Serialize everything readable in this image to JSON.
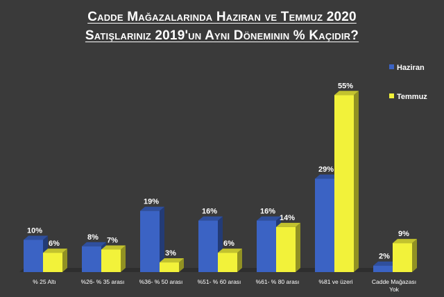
{
  "title_line1": "Cadde Mağazalarında Haziran ve Temmuz 2020",
  "title_line2": "Satışlarınız 2019'un Aynı Döneminin % Kaçıdır?",
  "chart_data": {
    "type": "bar",
    "title": "Cadde Mağazalarında Haziran ve Temmuz 2020 Satışlarınız 2019'un Aynı Döneminin % Kaçıdır?",
    "categories": [
      "% 25 Altı",
      "%26- % 35 arası",
      "%36- % 50 arası",
      "%51- % 60 arası",
      "%61- % 80 arası",
      "%81 ve üzeri",
      "Cadde Mağazası Yok"
    ],
    "series": [
      {
        "name": "Haziran",
        "values": [
          10,
          8,
          19,
          16,
          16,
          29,
          2
        ],
        "color": "#3b63c4"
      },
      {
        "name": "Temmuz",
        "values": [
          6,
          7,
          3,
          6,
          14,
          55,
          9
        ],
        "color": "#f2f23a"
      }
    ],
    "value_suffix": "%",
    "legend_position": "top-right",
    "grid": false,
    "ylim": [
      0,
      60
    ]
  }
}
